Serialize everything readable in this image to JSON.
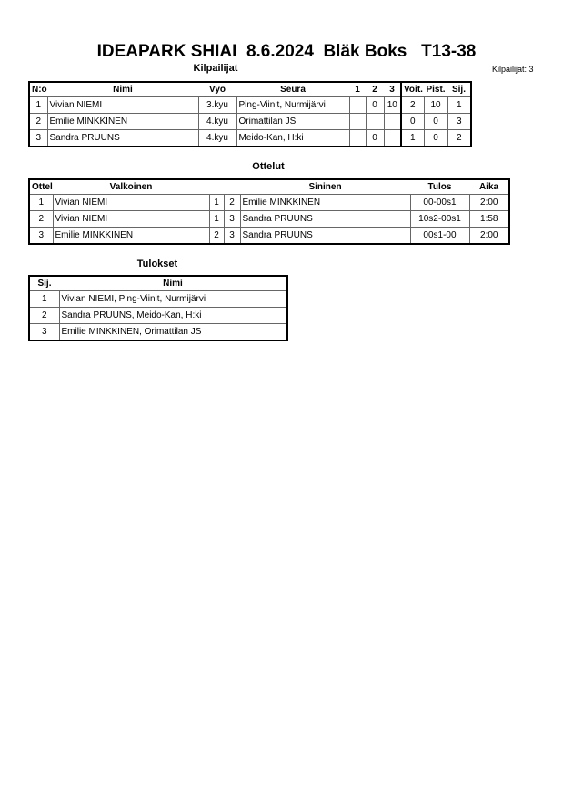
{
  "title": "IDEAPARK SHIAI  8.6.2024  Bläk Boks   T13-38",
  "competitors_section": {
    "title": "Kilpailijat",
    "count_label": "Kilpailijat: 3",
    "headers": [
      "N:o",
      "Nimi",
      "Vyö",
      "Seura",
      "1",
      "2",
      "3",
      "Voit.",
      "Pist.",
      "Sij."
    ],
    "rows": [
      [
        "1",
        "Vivian NIEMI",
        "3.kyu",
        "Ping-Viinit, Nurmijärvi",
        "",
        "0",
        "10",
        "2",
        "10",
        "1"
      ],
      [
        "2",
        "Emilie MINKKINEN",
        "4.kyu",
        "Orimattilan JS",
        "",
        "",
        "",
        "0",
        "0",
        "3"
      ],
      [
        "3",
        "Sandra PRUUNS",
        "4.kyu",
        "Meido-Kan, H:ki",
        "",
        "0",
        "",
        "1",
        "0",
        "2"
      ]
    ]
  },
  "matches_section": {
    "title": "Ottelut",
    "headers": [
      "Ottelu",
      "Valkoinen",
      "",
      "",
      "Sininen",
      "Tulos",
      "Aika"
    ],
    "rows": [
      [
        "1",
        "Vivian NIEMI",
        "1",
        "2",
        "Emilie MINKKINEN",
        "00-00s1",
        "2:00"
      ],
      [
        "2",
        "Vivian NIEMI",
        "1",
        "3",
        "Sandra PRUUNS",
        "10s2-00s1",
        "1:58"
      ],
      [
        "3",
        "Emilie MINKKINEN",
        "2",
        "3",
        "Sandra PRUUNS",
        "00s1-00",
        "2:00"
      ]
    ]
  },
  "results_section": {
    "title": "Tulokset",
    "headers": [
      "Sij.",
      "Nimi"
    ],
    "rows": [
      [
        "1",
        "Vivian NIEMI, Ping-Viinit, Nurmijärvi"
      ],
      [
        "2",
        "Sandra PRUUNS, Meido-Kan, H:ki"
      ],
      [
        "3",
        "Emilie MINKKINEN, Orimattilan JS"
      ]
    ]
  }
}
